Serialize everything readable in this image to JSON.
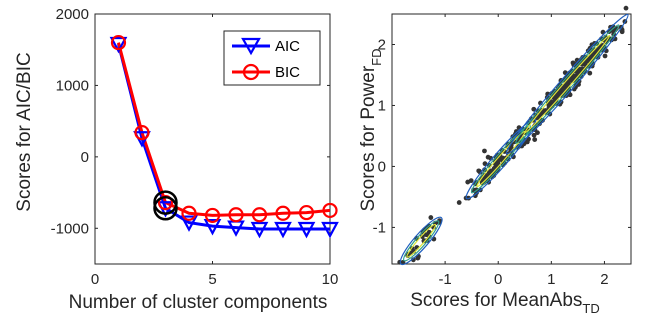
{
  "chart_data": [
    {
      "type": "line",
      "xlabel": "Number of cluster components",
      "ylabel": "Scores for AIC/BIC",
      "xlim": [
        0,
        10
      ],
      "ylim": [
        -1500,
        2000
      ],
      "xticks": [
        "0",
        "5",
        "10"
      ],
      "yticks": [
        "-1000",
        "0",
        "1000",
        "2000"
      ],
      "x": [
        1,
        2,
        3,
        4,
        5,
        6,
        7,
        8,
        9,
        10
      ],
      "series": [
        {
          "name": "AIC",
          "color": "#0000ff",
          "marker": "triangle-down",
          "values": [
            1580,
            260,
            -720,
            -920,
            -970,
            -990,
            -1010,
            -1010,
            -1010,
            -1010
          ]
        },
        {
          "name": "BIC",
          "color": "#ff0000",
          "marker": "circle",
          "values": [
            1600,
            340,
            -640,
            -790,
            -820,
            -810,
            -810,
            -790,
            -780,
            -750
          ]
        }
      ],
      "highlight": {
        "x": 3,
        "values": [
          -720,
          -640
        ],
        "color": "#000000"
      },
      "legend": "top-right",
      "grid": false
    },
    {
      "type": "scatter",
      "xlabel": "Scores for MeanAbs",
      "xlabel_subscript": "TD",
      "ylabel": "Scores for Power",
      "ylabel_subscript": "FD",
      "xlim": [
        -2,
        2.5
      ],
      "ylim": [
        -1.6,
        2.5
      ],
      "xticks": [
        "-1",
        "0",
        "1",
        "2"
      ],
      "yticks": [
        "-1",
        "0",
        "1",
        "2"
      ],
      "point_color": "#333333",
      "contour_colors": [
        "#1f5fbf",
        "#2fa08c",
        "#d8e83c"
      ],
      "clusters": [
        {
          "center": [
            -1.45,
            -1.22
          ],
          "spread": [
            0.2,
            0.2
          ]
        },
        {
          "center": [
            0.05,
            0.12
          ],
          "spread": [
            0.35,
            0.33
          ]
        },
        {
          "center": [
            1.3,
            1.35
          ],
          "spread": [
            0.6,
            0.6
          ]
        }
      ],
      "grid": false
    }
  ]
}
